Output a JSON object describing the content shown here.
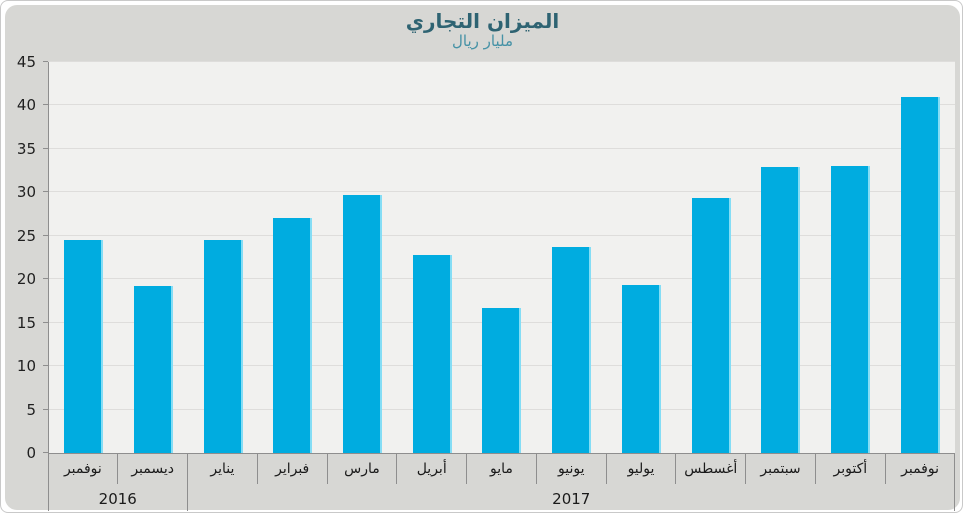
{
  "chart_data": {
    "type": "bar",
    "title": "الميزان التجاري",
    "subtitle": "مليار ريال",
    "categories": [
      "نوفمبر",
      "ديسمبر",
      "يناير",
      "فبراير",
      "مارس",
      "أبريل",
      "مايو",
      "يونيو",
      "يوليو",
      "أغسطس",
      "سبتمبر",
      "أكتوبر",
      "نوفمبر"
    ],
    "year_groups": [
      {
        "label": "2016",
        "span": 2
      },
      {
        "label": "2017",
        "span": 11
      }
    ],
    "values": [
      24.5,
      19.2,
      24.5,
      27.1,
      29.7,
      22.8,
      16.7,
      23.7,
      19.3,
      29.3,
      32.9,
      33.0,
      41.0
    ],
    "yticks": [
      "0",
      "5",
      "10",
      "15",
      "20",
      "25",
      "30",
      "35",
      "40",
      "45"
    ],
    "ylim": [
      0,
      45
    ],
    "ytick_step": 5,
    "grid": "horizontal",
    "legend": "none",
    "bar_color": "#00ace0",
    "bar_edge_color": "#84ddf5",
    "title_color": "#2e6372",
    "subtitle_color": "#4692a6",
    "plot_bg_color": "#f1f1ef",
    "panel_bg_color": "#d7d7d4",
    "axis_line_color": "#8e8e8e"
  }
}
